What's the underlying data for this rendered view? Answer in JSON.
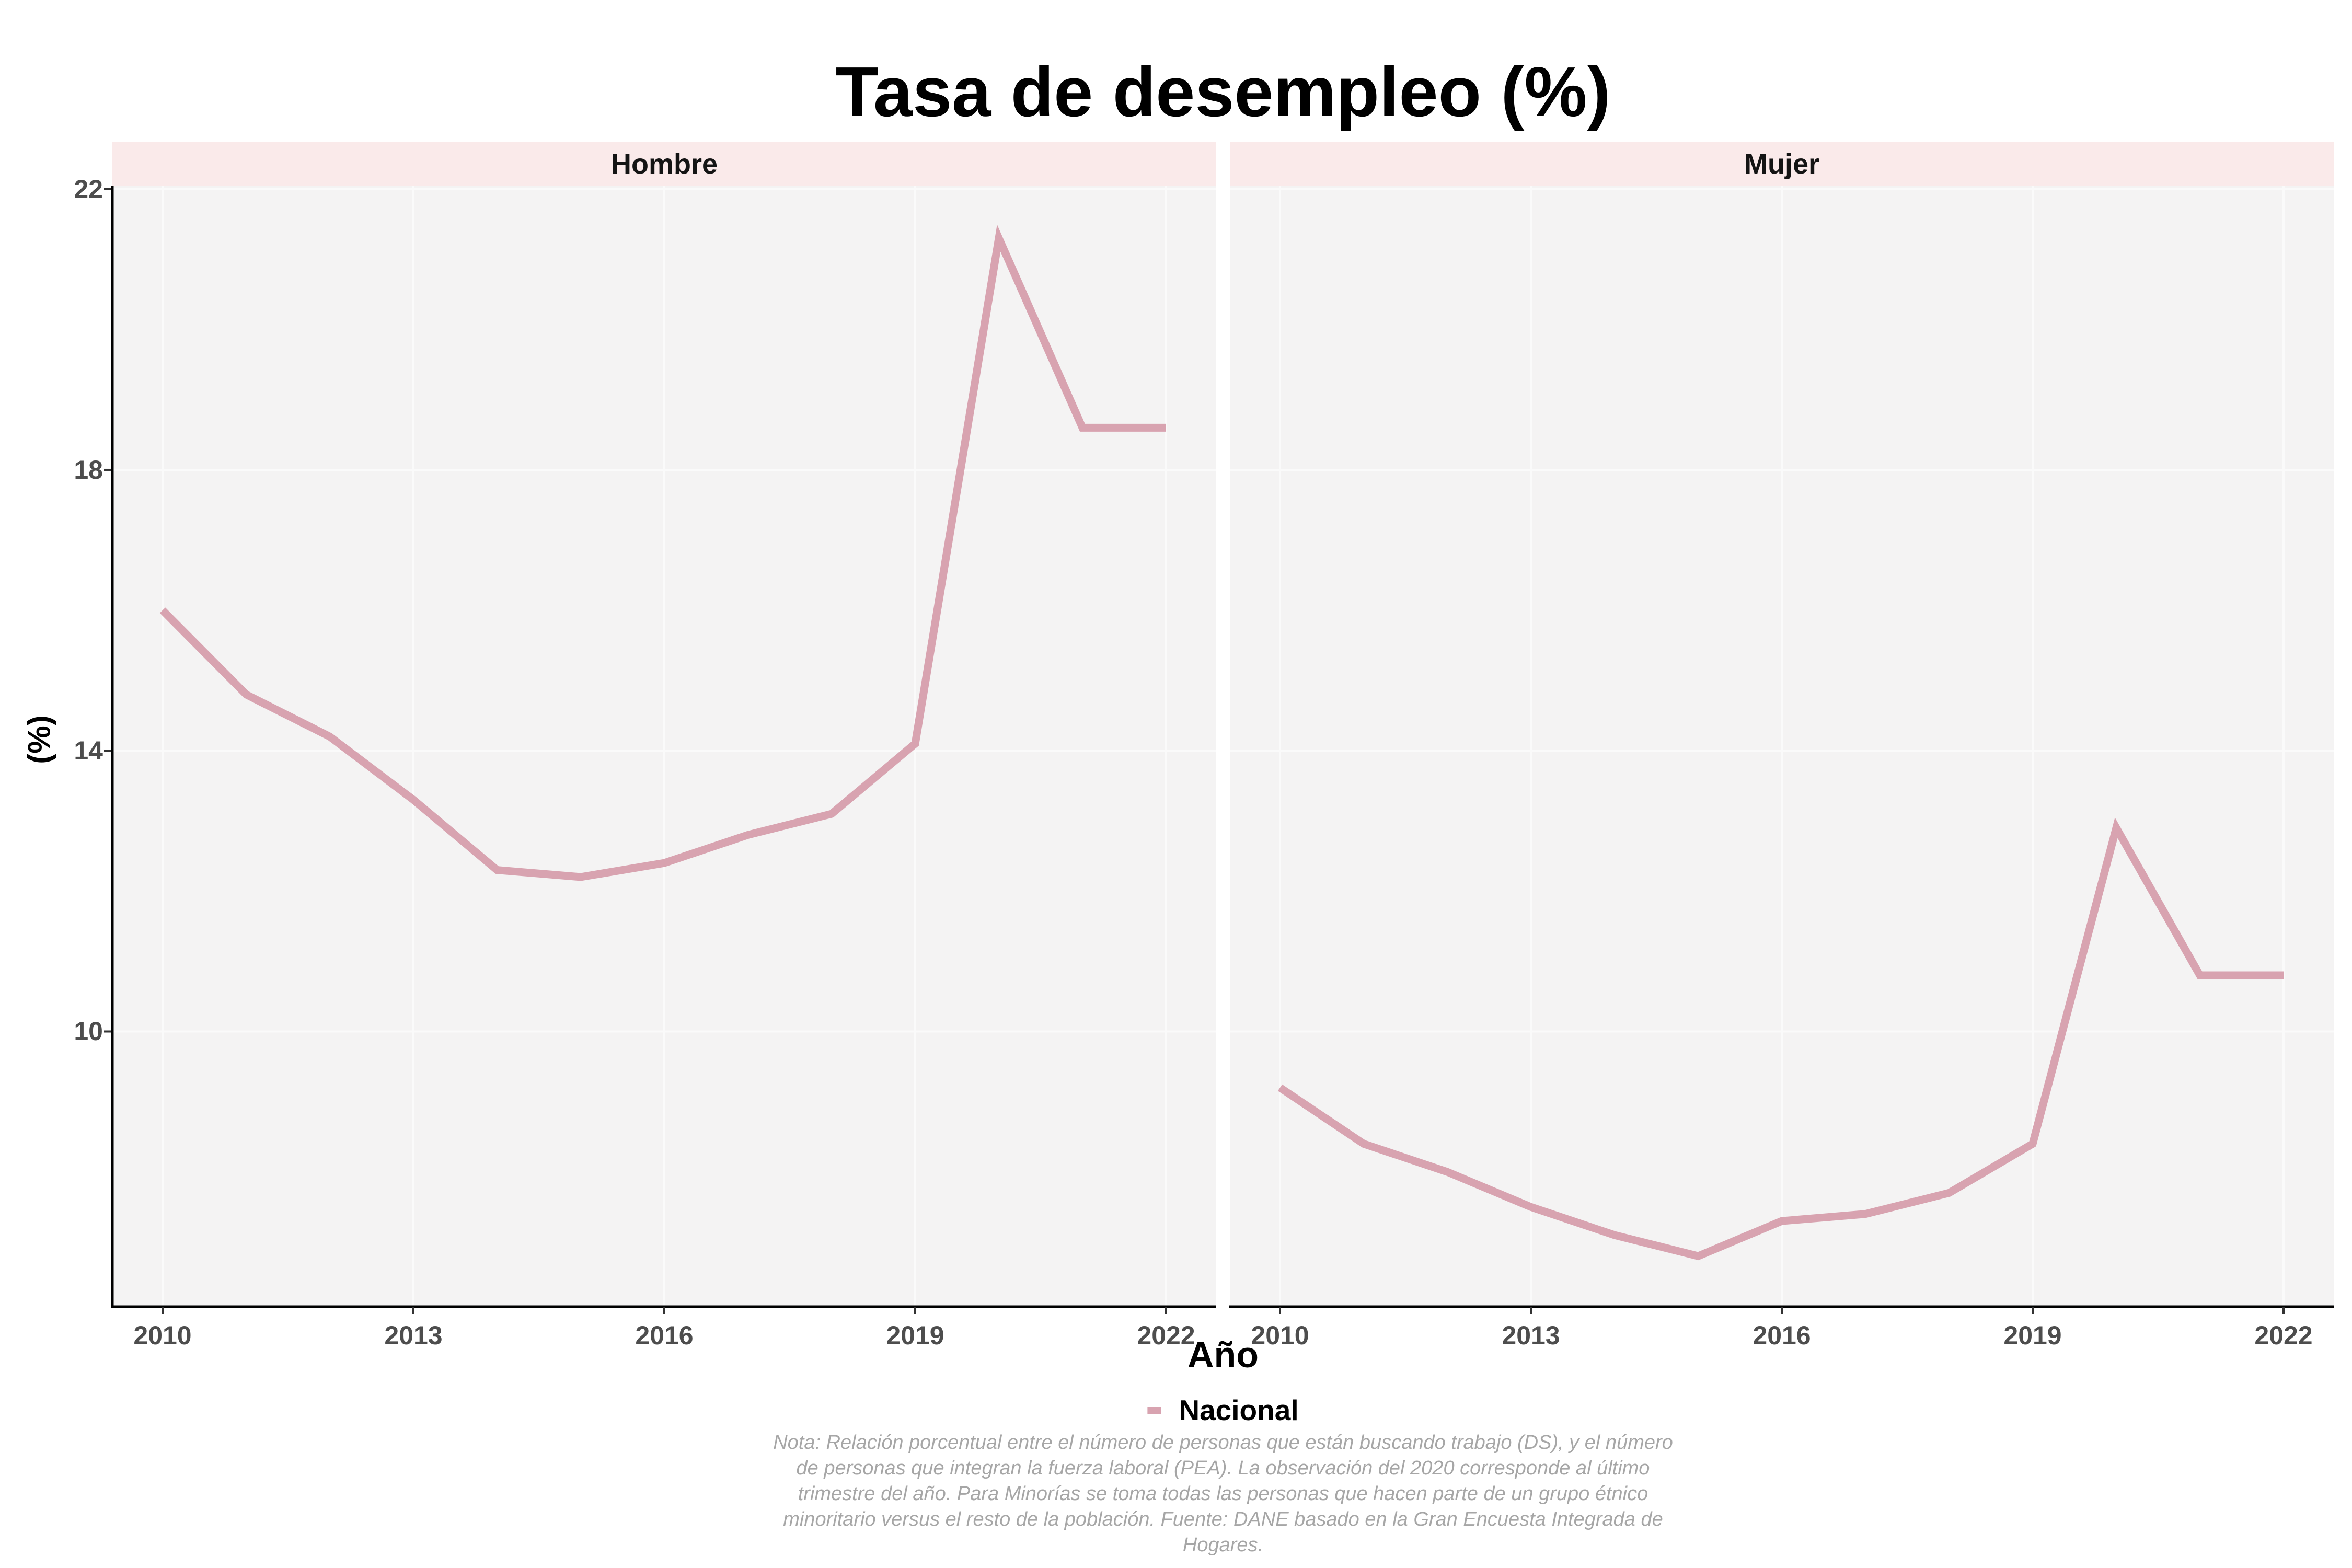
{
  "chart_data": {
    "type": "line",
    "title": "Tasa de desempleo (%)",
    "xlabel": "Año",
    "ylabel": "(%)",
    "x": [
      2010,
      2011,
      2012,
      2013,
      2014,
      2015,
      2016,
      2017,
      2018,
      2019,
      2020,
      2021,
      2022
    ],
    "facets": [
      {
        "label": "Hombre",
        "series": [
          {
            "name": "Nacional",
            "values": [
              16.0,
              14.8,
              14.2,
              13.3,
              12.3,
              12.2,
              12.4,
              12.8,
              13.1,
              14.1,
              21.3,
              18.6,
              18.6
            ]
          }
        ]
      },
      {
        "label": "Mujer",
        "series": [
          {
            "name": "Nacional",
            "values": [
              9.2,
              8.4,
              8.0,
              7.5,
              7.1,
              6.8,
              7.3,
              7.4,
              7.7,
              8.4,
              12.9,
              10.8,
              10.8
            ]
          }
        ]
      }
    ],
    "x_ticks": [
      2010,
      2013,
      2016,
      2019,
      2022
    ],
    "x_tick_labels": [
      "2010",
      "2013",
      "2016",
      "2019",
      "2022"
    ],
    "y_ticks": [
      22,
      18,
      14,
      10
    ],
    "y_tick_labels": [
      "22",
      "18",
      "14",
      "10"
    ],
    "xlim": [
      2009.4,
      2022.6
    ],
    "ylim": [
      6.08,
      22.05
    ],
    "grid": true,
    "legend": {
      "position": "bottom",
      "items": [
        {
          "label": "Nacional",
          "color": "#d8a3b0"
        }
      ]
    },
    "note_lines": [
      "Nota: Relación porcentual entre el número de personas que están buscando trabajo (DS), y el número",
      "de personas que integran la fuerza laboral (PEA). La observación del 2020 corresponde al último",
      "trimestre del año. Para Minorías se toma todas las personas que hacen parte de un grupo étnico",
      "minoritario versus el resto de la población. Fuente: DANE basado en la Gran Encuesta Integrada de",
      "Hogares."
    ],
    "colors": {
      "line": "#d8a3b0",
      "strip_bg": "#faeaea",
      "panel_bg": "#f4f3f3",
      "grid": "#fafafa",
      "axis_line": "#000000",
      "tick_mark": "#333333",
      "tick_label": "#4d4d4d",
      "note": "#a6a6a6",
      "text": "#000000"
    }
  }
}
